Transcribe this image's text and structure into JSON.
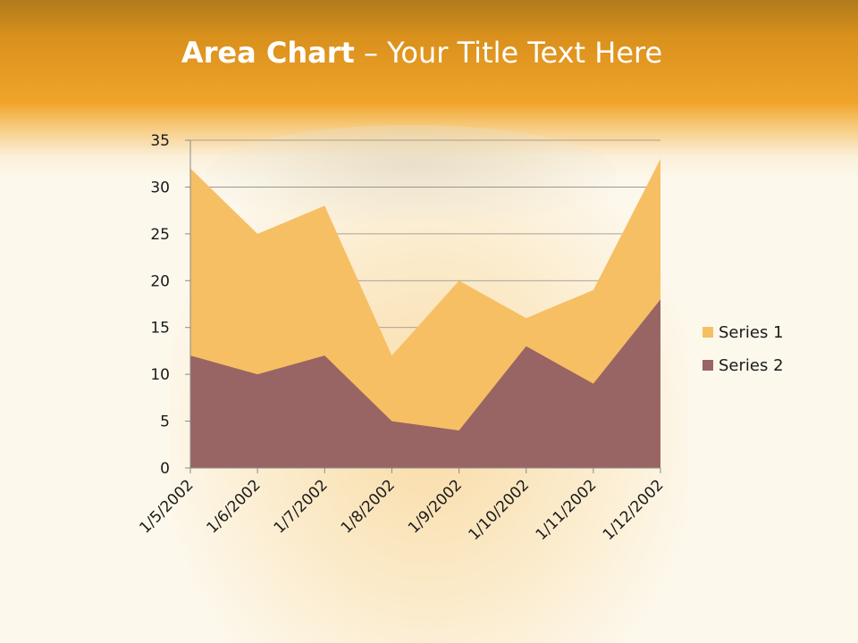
{
  "slide": {
    "title_bold": "Area Chart",
    "title_rest": " – Your Title Text Here"
  },
  "chart_data": {
    "type": "area",
    "categories": [
      "1/5/2002",
      "1/6/2002",
      "1/7/2002",
      "1/8/2002",
      "1/9/2002",
      "1/10/2002",
      "1/11/2002",
      "1/12/2002"
    ],
    "series": [
      {
        "name": "Series 1",
        "values": [
          32,
          25,
          28,
          12,
          20,
          16,
          19,
          33
        ],
        "color": "#f7bf63"
      },
      {
        "name": "Series 2",
        "values": [
          12,
          10,
          12,
          5,
          4,
          13,
          9,
          18
        ],
        "color": "#996464"
      }
    ],
    "ylim": [
      0,
      35
    ],
    "yticks": [
      "0",
      "5",
      "10",
      "15",
      "20",
      "25",
      "30",
      "35"
    ],
    "grid": true,
    "legend": "right"
  }
}
